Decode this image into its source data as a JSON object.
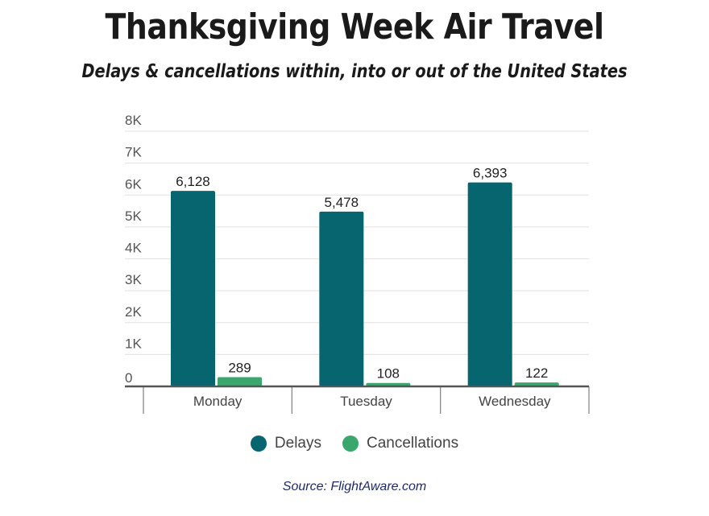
{
  "title": "Thanksgiving Week Air Travel",
  "subtitle": "Delays & cancellations within, into or out of the United States",
  "source": "Source: FlightAware.com",
  "colors": {
    "delays": "#076570",
    "cancellations": "#3aa76d",
    "grid": "#e6e6e6",
    "axis": "#555555",
    "text": "#333333"
  },
  "legend": [
    {
      "label": "Delays",
      "color": "#076570"
    },
    {
      "label": "Cancellations",
      "color": "#3aa76d"
    }
  ],
  "chart_data": {
    "type": "bar",
    "title": "Thanksgiving Week Air Travel",
    "subtitle": "Delays & cancellations within, into or out of the United States",
    "categories": [
      "Monday",
      "Tuesday",
      "Wednesday"
    ],
    "series": [
      {
        "name": "Delays",
        "values": [
          6128,
          5478,
          6393
        ],
        "labels": [
          "6,128",
          "5,478",
          "6,393"
        ],
        "color": "#076570"
      },
      {
        "name": "Cancellations",
        "values": [
          289,
          108,
          122
        ],
        "labels": [
          "289",
          "108",
          "122"
        ],
        "color": "#3aa76d"
      }
    ],
    "xlabel": "",
    "ylabel": "",
    "ylim": [
      0,
      8000
    ],
    "yticks": [
      0,
      1000,
      2000,
      3000,
      4000,
      5000,
      6000,
      7000,
      8000
    ],
    "ytick_labels": [
      "0",
      "1K",
      "2K",
      "3K",
      "4K",
      "5K",
      "6K",
      "7K",
      "8K"
    ],
    "grid": true,
    "legend_position": "bottom",
    "annotation": "Source: FlightAware.com"
  }
}
